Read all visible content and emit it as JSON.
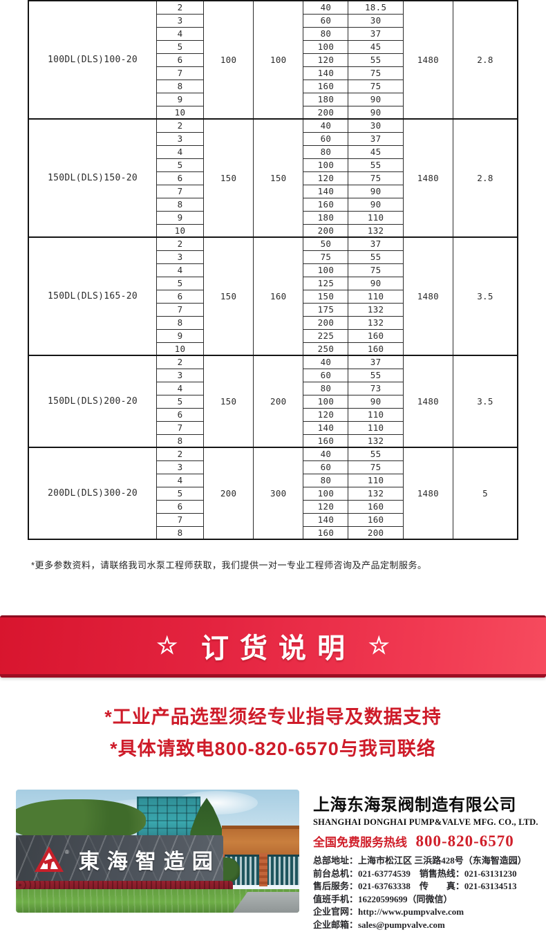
{
  "colors": {
    "banner_red_left": "#d8152e",
    "banner_red_right": "#f64b5e",
    "banner_edge_dark": "#9c0e23",
    "warning_red": "#ce1b29",
    "hotline_red": "#d01f2a",
    "logo_red": "#c8202a",
    "table_border": "#141414"
  },
  "table": {
    "blocks": [
      {
        "model": "100DL(DLS)100-20",
        "inlet": "100",
        "outlet": "100",
        "speed": "1480",
        "power": "2.8",
        "rows": [
          [
            "2",
            "40",
            "18.5"
          ],
          [
            "3",
            "60",
            "30"
          ],
          [
            "4",
            "80",
            "37"
          ],
          [
            "5",
            "100",
            "45"
          ],
          [
            "6",
            "120",
            "55"
          ],
          [
            "7",
            "140",
            "75"
          ],
          [
            "8",
            "160",
            "75"
          ],
          [
            "9",
            "180",
            "90"
          ],
          [
            "10",
            "200",
            "90"
          ]
        ]
      },
      {
        "model": "150DL(DLS)150-20",
        "inlet": "150",
        "outlet": "150",
        "speed": "1480",
        "power": "2.8",
        "rows": [
          [
            "2",
            "40",
            "30"
          ],
          [
            "3",
            "60",
            "37"
          ],
          [
            "4",
            "80",
            "45"
          ],
          [
            "5",
            "100",
            "55"
          ],
          [
            "6",
            "120",
            "75"
          ],
          [
            "7",
            "140",
            "90"
          ],
          [
            "8",
            "160",
            "90"
          ],
          [
            "9",
            "180",
            "110"
          ],
          [
            "10",
            "200",
            "132"
          ]
        ]
      },
      {
        "model": "150DL(DLS)165-20",
        "inlet": "150",
        "outlet": "160",
        "speed": "1480",
        "power": "3.5",
        "rows": [
          [
            "2",
            "50",
            "37"
          ],
          [
            "3",
            "75",
            "55"
          ],
          [
            "4",
            "100",
            "75"
          ],
          [
            "5",
            "125",
            "90"
          ],
          [
            "6",
            "150",
            "110"
          ],
          [
            "7",
            "175",
            "132"
          ],
          [
            "8",
            "200",
            "132"
          ],
          [
            "9",
            "225",
            "160"
          ],
          [
            "10",
            "250",
            "160"
          ]
        ]
      },
      {
        "model": "150DL(DLS)200-20",
        "inlet": "150",
        "outlet": "200",
        "speed": "1480",
        "power": "3.5",
        "rows": [
          [
            "2",
            "40",
            "37"
          ],
          [
            "3",
            "60",
            "55"
          ],
          [
            "4",
            "80",
            "73"
          ],
          [
            "5",
            "100",
            "90"
          ],
          [
            "6",
            "120",
            "110"
          ],
          [
            "7",
            "140",
            "110"
          ],
          [
            "8",
            "160",
            "132"
          ]
        ]
      },
      {
        "model": "200DL(DLS)300-20",
        "inlet": "200",
        "outlet": "300",
        "speed": "1480",
        "power": "5",
        "rows": [
          [
            "2",
            "40",
            "55"
          ],
          [
            "3",
            "60",
            "75"
          ],
          [
            "4",
            "80",
            "110"
          ],
          [
            "5",
            "100",
            "132"
          ],
          [
            "6",
            "120",
            "160"
          ],
          [
            "7",
            "140",
            "160"
          ],
          [
            "8",
            "160",
            "200"
          ]
        ]
      }
    ]
  },
  "note": "*更多参数资料，请联络我司水泵工程师获取，我们提供一对一专业工程师咨询及产品定制服务。",
  "banner": {
    "left_star": "☆",
    "title": "订货说明",
    "right_star": "☆"
  },
  "warnings": [
    "*工业产品选型须经专业指导及数据支持",
    "*具体请致电800-820-6570与我司联络"
  ],
  "photo": {
    "sign_text": "東海智造园",
    "registered_mark": "®"
  },
  "company": {
    "name_cn": "上海东海泵阀制造有限公司",
    "name_en": "SHANGHAI DONGHAI PUMP&VALVE MFG. CO., LTD.",
    "hotline_label": "全国免费服务热线",
    "hotline_number": "800-820-6570",
    "contacts": [
      "总部地址：上海市松江区 三浜路428号（东海智造园）",
      "前台总机：021-63774539　销售热线：021-63131230",
      "售后服务：021-63763338　传　　真：021-63134513",
      "值班手机：16220599699（同微信）",
      "企业官网：http://www.pumpvalve.com",
      "企业邮箱：sales@pumpvalve.com"
    ]
  }
}
